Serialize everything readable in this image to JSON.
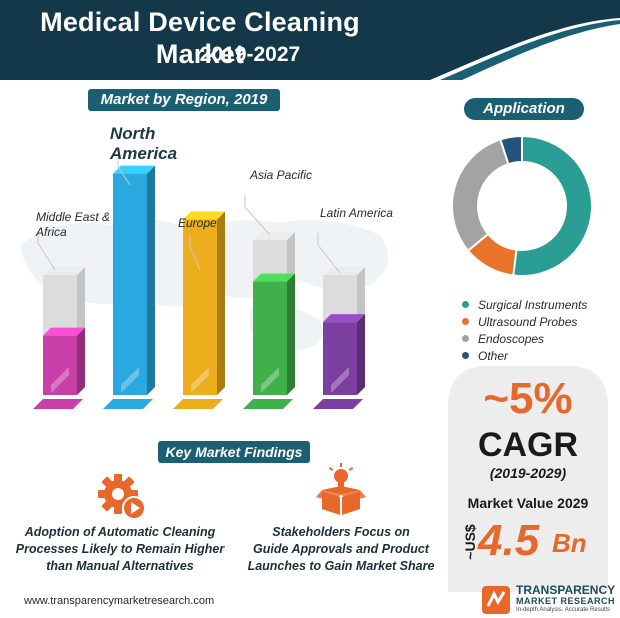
{
  "header": {
    "title": "Medical Device Cleaning Market",
    "subtitle": "2019-2027",
    "colors": {
      "dark": "#12384a",
      "accent": "#1b5f73"
    }
  },
  "region_section": {
    "title": "Market by Region, 2019"
  },
  "chart_data": [
    {
      "type": "bar",
      "title": "Market by Region, 2019",
      "categories": [
        "Middle East & Africa",
        "North America",
        "Europe",
        "Asia Pacific",
        "Latin America"
      ],
      "values": [
        0.22,
        0.82,
        0.65,
        0.42,
        0.27
      ],
      "value_note": "",
      "colors": [
        "#c93fa9",
        "#2aa8e0",
        "#ecae1c",
        "#40b04a",
        "#7b3fa0"
      ]
    },
    {
      "type": "pie",
      "title": "Application",
      "categories": [
        "Surgical Instruments",
        "Ultrasound Probes",
        "Endoscopes",
        "Other"
      ],
      "values": [
        52,
        12,
        31,
        5
      ],
      "colors": [
        "#2a9d94",
        "#e8732a",
        "#a3a3a3",
        "#23547a"
      ]
    }
  ],
  "application": {
    "title": "Application",
    "legend": [
      {
        "label": "Surgical Instruments",
        "color": "#2a9d94"
      },
      {
        "label": "Ultrasound Probes",
        "color": "#e8732a"
      },
      {
        "label": "Endoscopes",
        "color": "#a3a3a3"
      },
      {
        "label": "Other",
        "color": "#23547a"
      }
    ]
  },
  "stats": {
    "cagr_value": "~5%",
    "cagr_label": "CAGR",
    "cagr_years": "(2019-2029)",
    "market_value_label": "Market Value 2029",
    "currency": "~US$",
    "market_value": "4.5",
    "market_unit": "Bn"
  },
  "findings": {
    "title": "Key Market Findings",
    "items": [
      {
        "icon": "gear-play-icon",
        "line1": "Adoption of Automatic Cleaning",
        "line2": "Processes Likely to Remain Higher",
        "line3": "than Manual Alternatives"
      },
      {
        "icon": "idea-box-icon",
        "line1": "Stakeholders Focus on",
        "line2": "Guide Approvals and Product",
        "line3": "Launches to Gain Market Share"
      }
    ]
  },
  "footer": {
    "url": "www.transparencymarketresearch.com",
    "logo_main": "TRANSPARENCY",
    "logo_sub": "MARKET RESEARCH",
    "logo_tag": "In-depth Analysis. Accurate Results"
  }
}
